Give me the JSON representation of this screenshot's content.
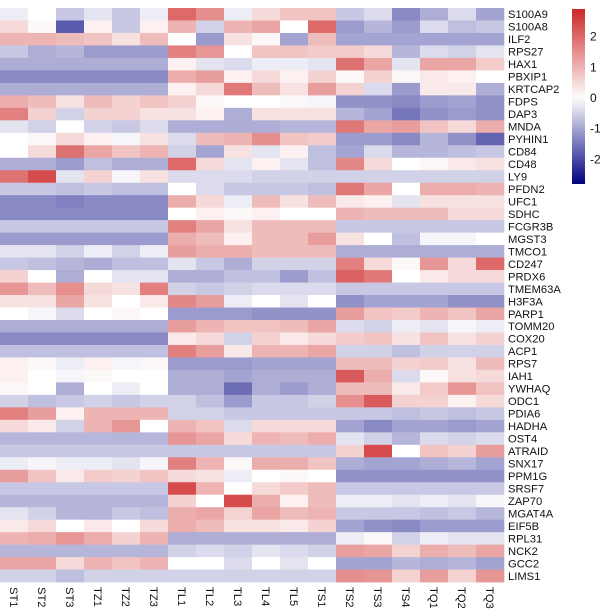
{
  "chart_data": {
    "type": "heatmap",
    "title": "",
    "columns": [
      "ST1",
      "ST2",
      "ST3",
      "TZ1",
      "TZ2",
      "TZ3",
      "TL1",
      "TL2",
      "TL3",
      "TL4",
      "TL5",
      "TS1",
      "TS2",
      "TS3",
      "TS4",
      "TQ1",
      "TQ2",
      "TQ3"
    ],
    "rows": [
      {
        "gene": "S100A9",
        "values": [
          -0.2,
          0,
          -0.6,
          -0.3,
          -0.6,
          -0.2,
          2.0,
          1.5,
          -0.2,
          0.5,
          0.8,
          0.8,
          -0.6,
          -0.4,
          -1.3,
          -0.9,
          -0.4,
          -1.0
        ]
      },
      {
        "gene": "S100A8",
        "values": [
          0.5,
          0.1,
          -1.8,
          0.2,
          -0.6,
          0.2,
          1.0,
          -0.5,
          1.0,
          1.2,
          0,
          2.0,
          -1.1,
          -0.8,
          -1.1,
          -0.4,
          -0.7,
          -0.6
        ]
      },
      {
        "gene": "ILF2",
        "values": [
          1.0,
          1.0,
          0.9,
          0.8,
          0.4,
          0.9,
          0,
          -1.1,
          0.4,
          0.1,
          -1.0,
          0.9,
          -1.0,
          -1.0,
          -1.0,
          -1.0,
          -1.0,
          -1.0
        ]
      },
      {
        "gene": "RPS27",
        "values": [
          -0.6,
          -0.9,
          -0.8,
          -1.1,
          -1.1,
          -1.1,
          1.7,
          1.4,
          0,
          0.8,
          0.8,
          0.7,
          0.7,
          0.5,
          -0.8,
          -0.4,
          -0.5,
          -0.3
        ]
      },
      {
        "gene": "HAX1",
        "values": [
          -0.9,
          -0.9,
          -0.9,
          -0.9,
          -0.9,
          -0.9,
          0.2,
          -0.3,
          -0.4,
          -0.2,
          -0.2,
          -0.3,
          1.9,
          1.2,
          -0.3,
          1.2,
          1.2,
          0.7
        ]
      },
      {
        "gene": "PBXIP1",
        "values": [
          -1.3,
          -1.3,
          -1.3,
          -1.3,
          -1.3,
          -1.3,
          1.1,
          1.3,
          0.2,
          0.5,
          0.2,
          0.6,
          0.1,
          0.6,
          0.1,
          0.3,
          0.2,
          0
        ]
      },
      {
        "gene": "KRTCAP2",
        "values": [
          -0.9,
          -0.9,
          -0.9,
          -0.9,
          -0.9,
          -0.9,
          0.2,
          0.5,
          1.8,
          0.9,
          0.4,
          1.3,
          0.6,
          -0.4,
          -1.1,
          0.3,
          0.3,
          -0.9
        ]
      },
      {
        "gene": "FDPS",
        "values": [
          1.1,
          0.9,
          0.4,
          0.9,
          0.6,
          0.8,
          0.6,
          0.1,
          0,
          0,
          0.1,
          -0.1,
          -1.2,
          -1.2,
          -1.3,
          -1.1,
          -1.0,
          -1.2
        ]
      },
      {
        "gene": "DAP3",
        "values": [
          1.7,
          0.6,
          -0.5,
          0.6,
          0.6,
          0.4,
          0.4,
          0.2,
          -0.9,
          0.4,
          0.4,
          0.4,
          -0.8,
          -1.0,
          -1.5,
          -1.2,
          -1.1,
          -1.2
        ]
      },
      {
        "gene": "MNDA",
        "values": [
          -0.3,
          -0.5,
          0,
          -0.5,
          -0.6,
          -0.4,
          -0.9,
          -0.9,
          -0.9,
          -0.9,
          -0.8,
          -0.8,
          1.8,
          1.2,
          1.3,
          0.8,
          0.5,
          1.1
        ]
      },
      {
        "gene": "PYHIN1",
        "values": [
          0,
          0.1,
          0.5,
          0.2,
          -0.1,
          0.4,
          -0.4,
          0.9,
          1.0,
          1.5,
          0.8,
          0.7,
          -1.1,
          -1.1,
          -1.3,
          -0.8,
          -1.2,
          -1.7
        ]
      },
      {
        "gene": "CD84",
        "values": [
          0,
          0.5,
          1.9,
          1.2,
          0.8,
          1.0,
          -0.5,
          -1.0,
          0.4,
          -0.3,
          0.2,
          -0.7,
          -1.0,
          -0.4,
          -0.8,
          -0.8,
          -0.7,
          -0.6
        ]
      },
      {
        "gene": "CD48",
        "values": [
          -0.9,
          -0.9,
          -1.1,
          -0.7,
          -0.9,
          -0.9,
          2.0,
          0.5,
          -0.3,
          0.2,
          -0.3,
          -0.7,
          1.6,
          0.5,
          0,
          0.1,
          0.3,
          0.4
        ]
      },
      {
        "gene": "LY9",
        "values": [
          1.9,
          2.4,
          -0.3,
          0.6,
          -0.1,
          0.4,
          -0.4,
          -0.4,
          -0.4,
          -0.5,
          -0.5,
          -0.5,
          -0.5,
          -0.5,
          -0.5,
          -0.5,
          -0.5,
          -0.5
        ]
      },
      {
        "gene": "PFDN2",
        "values": [
          -0.6,
          -0.6,
          -0.7,
          -0.6,
          -0.7,
          -0.7,
          0,
          -0.4,
          -0.6,
          -0.6,
          -0.6,
          -0.7,
          1.8,
          1.2,
          0,
          1.1,
          1.1,
          1.0
        ]
      },
      {
        "gene": "UFC1",
        "values": [
          -1.3,
          -1.3,
          -1.4,
          -1.3,
          -1.3,
          -1.3,
          1.1,
          0.5,
          -0.2,
          0.9,
          0.4,
          0.9,
          0.3,
          0.2,
          -0.3,
          0.4,
          0.4,
          0.4
        ]
      },
      {
        "gene": "SDHC",
        "values": [
          -1.3,
          -1.3,
          -1.3,
          -1.3,
          -1.3,
          -1.3,
          0,
          0.2,
          0.1,
          0.2,
          0,
          0,
          1.0,
          0.9,
          0.9,
          0.9,
          0.5,
          0.5
        ]
      },
      {
        "gene": "FCGR3B",
        "values": [
          -0.6,
          -0.6,
          -0.6,
          -0.6,
          -0.6,
          -0.6,
          1.7,
          1.2,
          0.4,
          0.9,
          0.9,
          0.9,
          -0.6,
          -0.6,
          -0.6,
          -0.6,
          -0.6,
          -0.6
        ]
      },
      {
        "gene": "MGST3",
        "values": [
          -1.1,
          -1.1,
          -1.1,
          -1.1,
          -1.1,
          -1.1,
          1.1,
          0.9,
          0.2,
          0.9,
          0.9,
          1.3,
          0.4,
          0,
          -0.7,
          -0.1,
          -0.1,
          0
        ]
      },
      {
        "gene": "TMCO1",
        "values": [
          -0.3,
          -0.3,
          -0.5,
          -0.2,
          -0.5,
          -0.2,
          1.3,
          1.1,
          1.1,
          0.9,
          0.9,
          0.9,
          -0.9,
          -0.9,
          -0.9,
          -0.9,
          -0.9,
          -0.9
        ]
      },
      {
        "gene": "CD247",
        "values": [
          -0.6,
          -0.7,
          -0.8,
          -0.9,
          -0.7,
          -0.7,
          -0.3,
          -0.6,
          -0.9,
          -0.5,
          -0.5,
          -0.5,
          1.7,
          0.5,
          0.1,
          1.4,
          0.5,
          2.0
        ]
      },
      {
        "gene": "PRDX6",
        "values": [
          0.6,
          0,
          -0.9,
          0,
          -0.3,
          -0.3,
          -0.9,
          -0.9,
          -0.7,
          -0.7,
          -1.1,
          -0.7,
          2.1,
          1.8,
          0,
          0.3,
          0.5,
          0.5
        ]
      },
      {
        "gene": "TMEM63A",
        "values": [
          1.4,
          0.9,
          1.5,
          0.5,
          0.4,
          1.7,
          -0.5,
          -0.6,
          -0.5,
          -0.4,
          -0.4,
          -0.4,
          -0.6,
          -0.6,
          -0.6,
          -0.6,
          -0.6,
          -0.6
        ]
      },
      {
        "gene": "H3F3A",
        "values": [
          0.4,
          0.4,
          1.2,
          0.4,
          0,
          0.3,
          1.6,
          1.3,
          -0.2,
          0,
          -0.3,
          0,
          -1.2,
          -1.0,
          -1.0,
          -1.0,
          -1.2,
          -1.2
        ]
      },
      {
        "gene": "PARP1",
        "values": [
          0,
          -0.1,
          -0.4,
          0,
          0.1,
          0,
          -1.1,
          -1.1,
          -1.1,
          -1.2,
          -1.2,
          -1.2,
          1.3,
          0.8,
          0.7,
          1.0,
          0.8,
          1.2
        ]
      },
      {
        "gene": "TOMM20",
        "values": [
          -0.9,
          -0.9,
          -0.9,
          -0.9,
          -0.9,
          -0.9,
          1.3,
          1.0,
          0.8,
          0.8,
          0.9,
          1.2,
          -0.4,
          -0.5,
          -0.2,
          -0.3,
          -0.1,
          -0.2
        ]
      },
      {
        "gene": "COX20",
        "values": [
          -1.3,
          -1.3,
          -1.3,
          -1.3,
          -1.3,
          -1.3,
          0.3,
          0.5,
          -0.5,
          0.6,
          0.3,
          0.5,
          0.7,
          0.8,
          0.4,
          0.8,
          0.4,
          0.6
        ]
      },
      {
        "gene": "ACP1",
        "values": [
          -0.7,
          -0.7,
          -0.7,
          -0.7,
          -0.7,
          -0.7,
          1.7,
          1.3,
          0.3,
          1.0,
          1.0,
          1.2,
          -0.5,
          -0.5,
          -0.7,
          -0.5,
          -0.5,
          -0.5
        ]
      },
      {
        "gene": "RPS7",
        "values": [
          0.2,
          0.1,
          -0.2,
          0.2,
          -0.1,
          0.1,
          -1.1,
          -1.1,
          -1.1,
          -1.0,
          -1.0,
          -1.0,
          0.9,
          0.9,
          0.6,
          0.7,
          0.4,
          0.9
        ]
      },
      {
        "gene": "IAH1",
        "values": [
          0.2,
          0,
          -0.1,
          0.1,
          0,
          0,
          -0.9,
          -0.9,
          -1.0,
          -0.9,
          -0.9,
          -0.9,
          2.2,
          1.1,
          -0.4,
          0.1,
          0.4,
          0.5
        ]
      },
      {
        "gene": "YWHAQ",
        "values": [
          0.1,
          0,
          -0.9,
          0,
          -0.2,
          0,
          -0.9,
          -0.9,
          -1.6,
          -0.9,
          -1.1,
          -0.9,
          0.9,
          0.9,
          0.3,
          0.7,
          1.4,
          0.8
        ]
      },
      {
        "gene": "ODC1",
        "values": [
          -0.5,
          -0.7,
          -0.6,
          -0.5,
          -0.6,
          -0.5,
          -0.5,
          -0.7,
          -1.1,
          -0.6,
          -0.6,
          -0.5,
          1.5,
          2.2,
          0.6,
          0.6,
          0.2,
          0.5
        ]
      },
      {
        "gene": "PDIA6",
        "values": [
          1.7,
          1.3,
          0.2,
          1.0,
          1.0,
          1.0,
          -0.5,
          -0.5,
          -0.6,
          -0.6,
          -0.6,
          -0.6,
          -0.6,
          -0.6,
          -0.7,
          -0.6,
          -0.7,
          -0.6
        ]
      },
      {
        "gene": "HADHA",
        "values": [
          0.5,
          0.3,
          -0.5,
          1.0,
          1.4,
          0,
          1.0,
          0.8,
          -0.4,
          0.5,
          0.5,
          0.5,
          -1.0,
          -1.3,
          -1.0,
          -1.0,
          -1.1,
          -1.0
        ]
      },
      {
        "gene": "OST4",
        "values": [
          -0.8,
          -0.8,
          -0.8,
          -0.8,
          -0.8,
          -0.8,
          1.4,
          1.2,
          0.5,
          1.0,
          0.9,
          1.1,
          -0.3,
          -0.5,
          -0.8,
          -0.4,
          -0.5,
          -0.4
        ]
      },
      {
        "gene": "ATRAID",
        "values": [
          -0.6,
          -0.6,
          -0.6,
          -0.6,
          -0.6,
          -0.6,
          -0.6,
          -0.6,
          -0.6,
          -0.6,
          -0.6,
          -0.6,
          0.6,
          2.4,
          0,
          0.8,
          0.6,
          1.3
        ]
      },
      {
        "gene": "SNX17",
        "values": [
          -0.2,
          -0.1,
          -0.2,
          -0.2,
          -0.3,
          -0.1,
          1.7,
          1.0,
          0.1,
          1.1,
          1.1,
          0.8,
          -0.9,
          -1.0,
          -1.0,
          -0.9,
          -0.8,
          -1.0
        ]
      },
      {
        "gene": "PPM1G",
        "values": [
          1.3,
          0.8,
          0.3,
          0.7,
          0.6,
          0.8,
          0.5,
          0.4,
          -0.2,
          0,
          0.1,
          0,
          -1.2,
          -1.2,
          -1.2,
          -1.2,
          -1.2,
          -1.2
        ]
      },
      {
        "gene": "SRSF7",
        "values": [
          -0.6,
          -0.6,
          -0.6,
          -0.6,
          -0.6,
          -0.6,
          2.4,
          1.0,
          0,
          0.5,
          0.7,
          0.9,
          -0.6,
          -0.6,
          -0.6,
          -0.6,
          -0.6,
          -0.6
        ]
      },
      {
        "gene": "ZAP70",
        "values": [
          -0.8,
          -0.8,
          -0.8,
          -0.8,
          -0.8,
          -0.8,
          0.6,
          0,
          2.4,
          1.1,
          0.2,
          0.9,
          -0.2,
          -0.2,
          -0.3,
          -0.2,
          -0.3,
          -0.1
        ]
      },
      {
        "gene": "MGAT4A",
        "values": [
          -0.3,
          -0.5,
          -0.8,
          -0.8,
          -0.6,
          -0.7,
          1.1,
          1.2,
          0.6,
          1.2,
          0.9,
          1.0,
          -0.6,
          -0.6,
          -0.6,
          -0.7,
          -0.6,
          -0.8
        ]
      },
      {
        "gene": "EIF5B",
        "values": [
          0.3,
          0.5,
          0,
          0.3,
          0,
          0.5,
          1.1,
          0.9,
          0.4,
          0.4,
          0.3,
          0.6,
          -1.0,
          -1.2,
          -1.3,
          -1.1,
          -1.1,
          -1.1
        ]
      },
      {
        "gene": "RPL31",
        "values": [
          1.0,
          1.1,
          1.4,
          1.1,
          0.6,
          1.0,
          -0.9,
          -0.9,
          -0.9,
          -0.9,
          -0.9,
          -0.9,
          -0.2,
          0.1,
          -0.5,
          -0.2,
          -0.3,
          -0.3
        ]
      },
      {
        "gene": "NCK2",
        "values": [
          -0.8,
          -0.8,
          -0.8,
          -0.8,
          -0.8,
          -0.8,
          -0.5,
          -0.4,
          -0.5,
          -0.3,
          -0.4,
          -0.5,
          1.3,
          1.2,
          0.6,
          1.1,
          0.9,
          1.2
        ]
      },
      {
        "gene": "GCC2",
        "values": [
          1.2,
          1.2,
          0.5,
          1.0,
          0.8,
          1.0,
          0,
          0,
          -0.4,
          0,
          -0.3,
          0,
          -1.0,
          -1.0,
          -0.8,
          -0.9,
          -0.8,
          -1.0
        ]
      },
      {
        "gene": "LIMS1",
        "values": [
          -0.5,
          -0.5,
          -0.7,
          -0.5,
          -0.5,
          -0.5,
          -0.5,
          -0.5,
          -0.5,
          -0.5,
          -0.5,
          -0.5,
          1.5,
          1.4,
          0.6,
          1.3,
          0.6,
          1.4
        ]
      }
    ],
    "colorbar": {
      "range": [
        -2.8,
        2.9
      ],
      "ticks": [
        2,
        1,
        0,
        -1,
        -2
      ],
      "tick_labels": [
        "2",
        "1",
        "0",
        "-1",
        "-2"
      ],
      "colors": {
        "low": "#000080",
        "mid": "#ffffff",
        "high": "#cd2626"
      }
    },
    "legend_placement": "right",
    "grid": false
  }
}
